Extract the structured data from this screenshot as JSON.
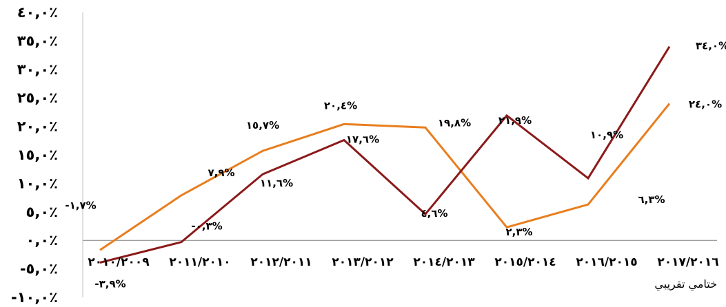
{
  "chart_data": {
    "type": "line",
    "categories": [
      "٢٠١٠/٢٠٠٩",
      "٢٠١١/٢٠١٠",
      "٢٠١٢/٢٠١١",
      "٢٠١٣/٢٠١٢",
      "٢٠١٤/٢٠١٣",
      "٢٠١٥/٢٠١٤",
      "٢٠١٦/٢٠١٥",
      "٢٠١٧/٢٠١٦"
    ],
    "xlabel": "ختامي تقريبي",
    "ylim": [
      -10,
      40
    ],
    "yticks": [
      40,
      35,
      30,
      25,
      20,
      15,
      10,
      5,
      0,
      -5,
      -10
    ],
    "ytick_labels": [
      "٤٠,٠٪",
      "٣٥,٠٪",
      "٣٠,٠٪",
      "٢٥,٠٪",
      "٢٠,٠٪",
      "١٥,٠٪",
      "١٠,٠٪",
      "٥,٠٪",
      "٠,٠٪",
      "-٥,٠٪",
      "-١٠,٠٪"
    ],
    "grid": false,
    "legend": "none",
    "series": [
      {
        "color": "#E87E1E",
        "values": [
          -1.7,
          7.9,
          15.7,
          20.4,
          19.8,
          2.3,
          6.3,
          24.0
        ],
        "data_labels": [
          "-١,٧%",
          "٧,٩%",
          "١٥,٧%",
          "٢٠,٤%",
          "١٩,٨%",
          "٢,٣%",
          "٦,٣%",
          "٢٤,٠%"
        ]
      },
      {
        "color": "#8B1A1A",
        "values": [
          -3.9,
          -0.3,
          11.6,
          17.6,
          4.6,
          21.9,
          10.9,
          34.0
        ],
        "data_labels": [
          "-٣,٩%",
          "-٠,٣%",
          "١١,٦%",
          "١٧,٦%",
          "٤,٦%",
          "٢١,٩%",
          "١٠,٩%",
          "٣٤,٠%"
        ]
      }
    ]
  }
}
